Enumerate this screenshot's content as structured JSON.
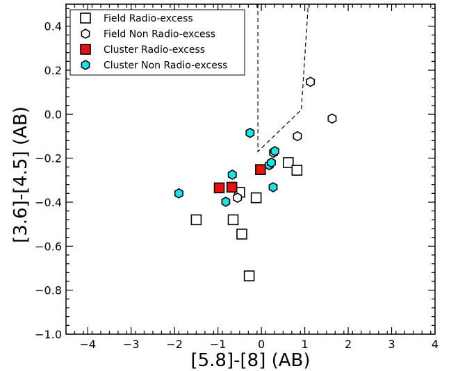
{
  "chart_data": {
    "type": "scatter",
    "title": "",
    "xlabel": "[5.8]-[8] (AB)",
    "ylabel": "[3.6]-[4.5] (AB)",
    "xlim": [
      -4.5,
      4.0
    ],
    "ylim": [
      -1.0,
      0.5
    ],
    "x_ticks": [
      -4,
      -3,
      -2,
      -1,
      0,
      1,
      2,
      3,
      4
    ],
    "x_tick_labels": [
      "−4",
      "−3",
      "−2",
      "−1",
      "0",
      "1",
      "2",
      "3",
      "4"
    ],
    "y_ticks": [
      -1.0,
      -0.8,
      -0.6,
      -0.4,
      -0.2,
      0.0,
      0.2,
      0.4
    ],
    "y_tick_labels": [
      "−1.0",
      "−0.8",
      "−0.6",
      "−0.4",
      "−0.2",
      "0.0",
      "0.2",
      "0.4"
    ],
    "grid": false,
    "legend_position": "top-left",
    "series": [
      {
        "name": "Field Radio-excess",
        "marker": "square",
        "fill": "#ffffff",
        "points": [
          {
            "x": -1.5,
            "y": -0.48
          },
          {
            "x": -0.65,
            "y": -0.48
          },
          {
            "x": -0.45,
            "y": -0.545
          },
          {
            "x": -0.28,
            "y": -0.735
          },
          {
            "x": -0.5,
            "y": -0.355
          },
          {
            "x": -0.12,
            "y": -0.38
          },
          {
            "x": 0.62,
            "y": -0.22
          },
          {
            "x": 0.82,
            "y": -0.255
          }
        ]
      },
      {
        "name": "Field Non Radio-excess",
        "marker": "hexagon",
        "fill": "#ffffff",
        "points": [
          {
            "x": -0.55,
            "y": -0.38
          },
          {
            "x": 0.28,
            "y": -0.175
          },
          {
            "x": 0.83,
            "y": -0.1
          },
          {
            "x": 1.13,
            "y": 0.147
          },
          {
            "x": 1.63,
            "y": -0.02
          }
        ]
      },
      {
        "name": "Cluster Radio-excess",
        "marker": "square",
        "fill": "#e8120c",
        "points": [
          {
            "x": -0.97,
            "y": -0.335
          },
          {
            "x": -0.68,
            "y": -0.332
          },
          {
            "x": -0.02,
            "y": -0.252
          }
        ]
      },
      {
        "name": "Cluster Non Radio-excess",
        "marker": "hexagon",
        "fill": "#19e5e8",
        "points": [
          {
            "x": -1.9,
            "y": -0.36
          },
          {
            "x": -0.82,
            "y": -0.398
          },
          {
            "x": -0.67,
            "y": -0.275
          },
          {
            "x": -0.26,
            "y": -0.085
          },
          {
            "x": 0.18,
            "y": -0.232
          },
          {
            "x": 0.23,
            "y": -0.22
          },
          {
            "x": 0.31,
            "y": -0.168
          },
          {
            "x": 0.27,
            "y": -0.332
          }
        ]
      }
    ],
    "wedge_line": [
      {
        "x": -0.08,
        "y": 0.5
      },
      {
        "x": -0.08,
        "y": -0.17
      },
      {
        "x": 0.92,
        "y": 0.02
      },
      {
        "x": 1.08,
        "y": 0.5
      }
    ]
  }
}
